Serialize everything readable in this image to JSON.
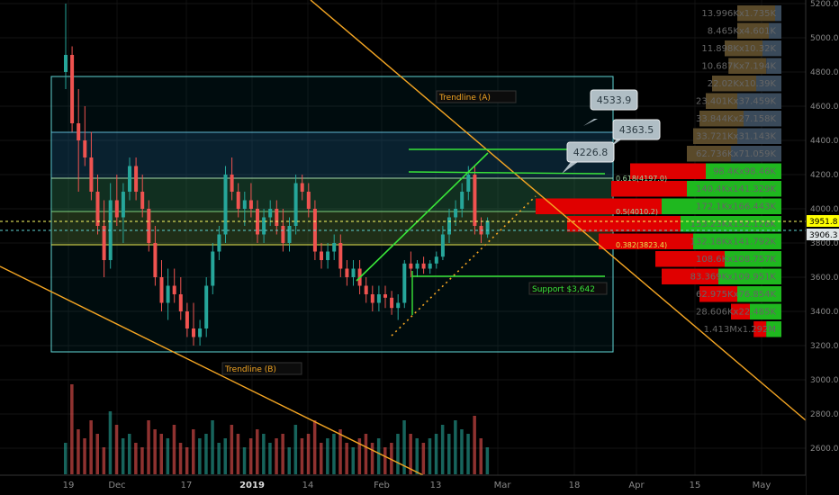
{
  "chart_data": {
    "type": "candlestick",
    "symbol_hint": "BTC",
    "price_axis": {
      "ticks": [
        5200,
        5000,
        4800,
        4600,
        4400,
        4200,
        4000,
        3800,
        3600,
        3400,
        3200,
        3000,
        2800,
        2600
      ],
      "tick_labels": [
        "5200.0",
        "5000.0",
        "4800.0",
        "4600.0",
        "4400.0",
        "4200.0",
        "4000.0",
        "3800.0",
        "3600.0",
        "3400.0",
        "3200.0",
        "3000.0",
        "2800.0",
        "2600.0"
      ],
      "current_price": "3951.8",
      "second_price": "3906.3"
    },
    "time_axis": {
      "labels": [
        "19",
        "Dec",
        "17",
        "2019",
        "14",
        "Feb",
        "13",
        "Mar",
        "18",
        "Apr",
        "15",
        "May"
      ],
      "bold": [
        "2019"
      ]
    },
    "candles": [
      [
        4800,
        5200,
        4700,
        4900
      ],
      [
        4900,
        4950,
        4450,
        4500
      ],
      [
        4500,
        4700,
        4100,
        4400
      ],
      [
        4400,
        4600,
        4250,
        4300
      ],
      [
        4300,
        4450,
        4050,
        4100
      ],
      [
        4100,
        4200,
        3850,
        3900
      ],
      [
        3900,
        4050,
        3600,
        3700
      ],
      [
        3700,
        4150,
        3650,
        4050
      ],
      [
        4050,
        4200,
        3900,
        3950
      ],
      [
        3950,
        4150,
        3800,
        4100
      ],
      [
        4100,
        4300,
        4050,
        4250
      ],
      [
        4250,
        4300,
        4050,
        4100
      ],
      [
        4100,
        4200,
        3950,
        4000
      ],
      [
        4000,
        4050,
        3750,
        3800
      ],
      [
        3800,
        3900,
        3550,
        3600
      ],
      [
        3600,
        3700,
        3400,
        3450
      ],
      [
        3450,
        3650,
        3350,
        3550
      ],
      [
        3550,
        3650,
        3450,
        3500
      ],
      [
        3500,
        3600,
        3350,
        3400
      ],
      [
        3400,
        3450,
        3250,
        3300
      ],
      [
        3300,
        3450,
        3200,
        3250
      ],
      [
        3250,
        3350,
        3200,
        3300
      ],
      [
        3300,
        3600,
        3250,
        3550
      ],
      [
        3550,
        3800,
        3500,
        3750
      ],
      [
        3750,
        3900,
        3700,
        3850
      ],
      [
        3850,
        4250,
        3800,
        4200
      ],
      [
        4200,
        4300,
        4050,
        4100
      ],
      [
        4100,
        4150,
        3950,
        4000
      ],
      [
        4000,
        4100,
        3900,
        4050
      ],
      [
        4050,
        4150,
        3950,
        4000
      ],
      [
        4000,
        4050,
        3800,
        3850
      ],
      [
        3850,
        4000,
        3800,
        3950
      ],
      [
        3950,
        4050,
        3900,
        4000
      ],
      [
        4000,
        4050,
        3850,
        3900
      ],
      [
        3900,
        4000,
        3750,
        3800
      ],
      [
        3800,
        3950,
        3750,
        3900
      ],
      [
        3900,
        4200,
        3850,
        4150
      ],
      [
        4150,
        4200,
        4050,
        4100
      ],
      [
        4100,
        4150,
        3950,
        4000
      ],
      [
        4000,
        4050,
        3700,
        3750
      ],
      [
        3750,
        3800,
        3650,
        3700
      ],
      [
        3700,
        3800,
        3650,
        3750
      ],
      [
        3750,
        3850,
        3700,
        3800
      ],
      [
        3800,
        3850,
        3600,
        3650
      ],
      [
        3650,
        3700,
        3550,
        3600
      ],
      [
        3600,
        3700,
        3550,
        3650
      ],
      [
        3650,
        3700,
        3500,
        3550
      ],
      [
        3550,
        3600,
        3450,
        3500
      ],
      [
        3500,
        3550,
        3400,
        3450
      ],
      [
        3450,
        3550,
        3400,
        3500
      ],
      [
        3500,
        3550,
        3420,
        3480
      ],
      [
        3480,
        3520,
        3380,
        3420
      ],
      [
        3420,
        3500,
        3350,
        3450
      ],
      [
        3450,
        3700,
        3420,
        3680
      ],
      [
        3680,
        3750,
        3600,
        3650
      ],
      [
        3650,
        3700,
        3600,
        3680
      ],
      [
        3680,
        3720,
        3620,
        3650
      ],
      [
        3650,
        3700,
        3620,
        3680
      ],
      [
        3680,
        3750,
        3650,
        3720
      ],
      [
        3720,
        3900,
        3700,
        3850
      ],
      [
        3850,
        4000,
        3800,
        3950
      ],
      [
        3950,
        4050,
        3900,
        4000
      ],
      [
        4000,
        4150,
        3950,
        4100
      ],
      [
        4100,
        4250,
        4050,
        4200
      ],
      [
        4200,
        4250,
        3850,
        3900
      ],
      [
        3900,
        3950,
        3800,
        3850
      ],
      [
        3850,
        3950,
        3830,
        3930
      ]
    ],
    "volumes": [
      35,
      100,
      50,
      40,
      60,
      45,
      30,
      70,
      55,
      40,
      45,
      35,
      30,
      60,
      50,
      45,
      40,
      55,
      35,
      30,
      50,
      40,
      45,
      60,
      35,
      40,
      55,
      45,
      30,
      40,
      50,
      45,
      35,
      40,
      45,
      30,
      55,
      40,
      45,
      60,
      35,
      40,
      45,
      50,
      35,
      30,
      40,
      45,
      35,
      40,
      30,
      35,
      45,
      60,
      45,
      40,
      35,
      40,
      45,
      55,
      45,
      60,
      50,
      45,
      65,
      40,
      30
    ],
    "fib_levels": [
      {
        "label": "0.618(4197.0)",
        "value": 4197.0
      },
      {
        "label": "0.5(4010.2)",
        "value": 4010.2
      },
      {
        "label": "0.382(3823.4)",
        "value": 3823.4
      }
    ],
    "callouts": [
      "4533.9",
      "4363.5",
      "4226.8"
    ],
    "annotations": {
      "trendline_a": "Trendline (A)",
      "trendline_b": "Trendline (B)",
      "support": "Support $3,642"
    },
    "volume_profile": [
      {
        "label": "13.996Kx1.735K",
        "up": 5,
        "down": 30
      },
      {
        "label": "8.465Kx4.601K",
        "up": 10,
        "down": 25
      },
      {
        "label": "11.898Kx10.32K",
        "up": 15,
        "down": 30
      },
      {
        "label": "10.687Kx7.194K",
        "up": 12,
        "down": 30
      },
      {
        "label": "22.02Kx10.39K",
        "up": 20,
        "down": 35
      },
      {
        "label": "23.401Kx37.459K",
        "up": 35,
        "down": 25
      },
      {
        "label": "33.844Kx27.158K",
        "up": 30,
        "down": 35
      },
      {
        "label": "33.721Kx31.143K",
        "up": 35,
        "down": 35
      },
      {
        "label": "62.736Kx71.059K",
        "up": 40,
        "down": 35
      },
      {
        "label": "98.4Kx98.46K",
        "up": 60,
        "down": 60
      },
      {
        "label": "140.4Kx141.329K",
        "up": 75,
        "down": 60
      },
      {
        "label": "172.1Kx166.443K",
        "up": 95,
        "down": 100
      },
      {
        "label": "153.23Kx152.126K",
        "up": 80,
        "down": 90
      },
      {
        "label": "132.18Kx141.792K",
        "up": 70,
        "down": 75
      },
      {
        "label": "108.6Kx108.757K",
        "up": 45,
        "down": 55
      },
      {
        "label": "83.369Kx109.951K",
        "up": 50,
        "down": 45
      },
      {
        "label": "62.975Kx76.854K",
        "up": 35,
        "down": 30
      },
      {
        "label": "28.606Kx22.485K",
        "up": 25,
        "down": 15
      },
      {
        "label": "1.413Mx1.292M",
        "up": 12,
        "down": 10
      }
    ],
    "colors": {
      "up": "#26a69a",
      "down": "#ef5350",
      "green_line": "#39e639",
      "orange_line": "#f5a623",
      "box": "#5fd3d3",
      "profile_up": "#1fb81f",
      "profile_down": "#e00000",
      "price_tag": "#ffff00"
    }
  }
}
